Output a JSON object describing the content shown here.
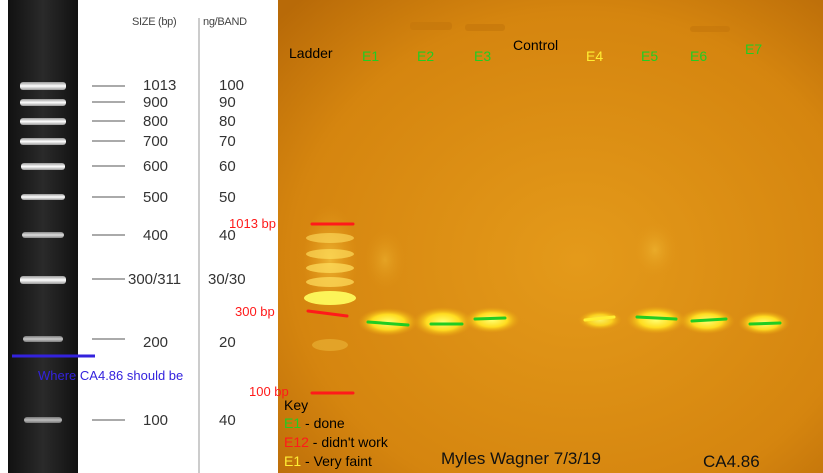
{
  "ladder_reference": {
    "size_header": "SIZE (bp)",
    "mass_header": "ng/BAND",
    "rows": [
      {
        "size": "1013",
        "mass": "100"
      },
      {
        "size": "900",
        "mass": "90"
      },
      {
        "size": "800",
        "mass": "80"
      },
      {
        "size": "700",
        "mass": "70"
      },
      {
        "size": "600",
        "mass": "60"
      },
      {
        "size": "500",
        "mass": "50"
      },
      {
        "size": "400",
        "mass": "40"
      },
      {
        "size": "300/311",
        "mass": "30/30"
      },
      {
        "size": "200",
        "mass": "20"
      },
      {
        "size": "100",
        "mass": "40"
      }
    ],
    "target_note": "Where CA4.86 should be"
  },
  "gel": {
    "lanes": [
      {
        "label": "Ladder",
        "color": "#000000"
      },
      {
        "label": "E1",
        "color": "#22cc22"
      },
      {
        "label": "E2",
        "color": "#22cc22"
      },
      {
        "label": "E3",
        "color": "#22cc22"
      },
      {
        "label": "Control",
        "color": "#000000"
      },
      {
        "label": "E4",
        "color": "#ffee33"
      },
      {
        "label": "E5",
        "color": "#22cc22"
      },
      {
        "label": "E6",
        "color": "#22cc22"
      },
      {
        "label": "E7",
        "color": "#22cc22"
      }
    ],
    "markers": [
      {
        "label": "1013 bp",
        "color": "#ff1a1a"
      },
      {
        "label": "300 bp",
        "color": "#ff1a1a"
      },
      {
        "label": "100 bp",
        "color": "#ff1a1a"
      }
    ],
    "key": {
      "title": "Key",
      "entries": [
        {
          "code": "E1",
          "text": " - done",
          "color": "#22cc22"
        },
        {
          "code": "E12",
          "text": " - didn't work",
          "color": "#ff1a1a"
        },
        {
          "code": "E1",
          "text": " - Very faint",
          "color": "#ffee33"
        }
      ]
    },
    "author": "Myles Wagner 7/3/19",
    "sample_id": "CA4.86"
  },
  "colors": {
    "gel_background": "#e49015",
    "green_mark": "#22cc22",
    "yellow_mark": "#ffee33",
    "red_mark": "#ff1a1a",
    "target_line": "#3322dd"
  }
}
